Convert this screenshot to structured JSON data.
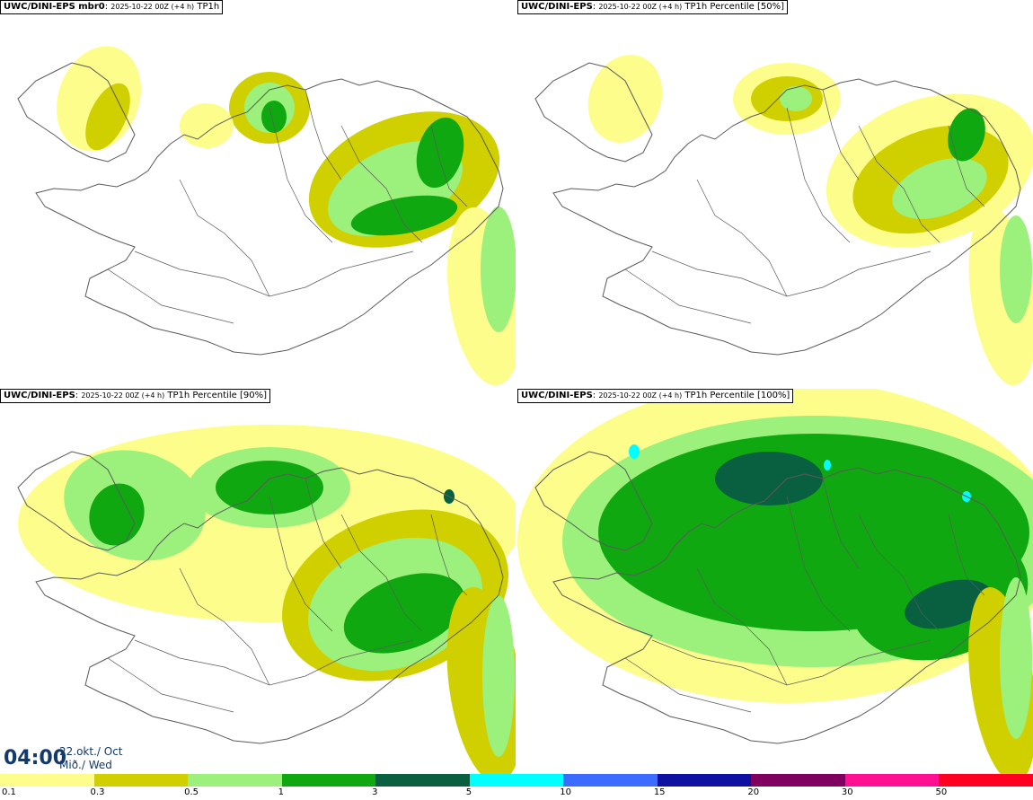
{
  "panels": [
    {
      "model": "UWC/DINI-EPS mbr0",
      "run": "2025-10-22 00Z (+4 h)",
      "field": "TP1h"
    },
    {
      "model": "UWC/DINI-EPS",
      "run": "2025-10-22 00Z (+4 h)",
      "field": "TP1h Percentile [50%]"
    },
    {
      "model": "UWC/DINI-EPS",
      "run": "2025-10-22 00Z (+4 h)",
      "field": "TP1h Percentile [90%]"
    },
    {
      "model": "UWC/DINI-EPS",
      "run": "2025-10-22 00Z (+4 h)",
      "field": "TP1h Percentile [100%]"
    }
  ],
  "valid_time": {
    "hour": "04:00",
    "date_line1": "22.okt./ Oct",
    "date_line2": "Mið./ Wed"
  },
  "colorbar": {
    "colors": [
      "#fdfd8c",
      "#d0d000",
      "#9cf07c",
      "#10a810",
      "#086040",
      "#00ffff",
      "#3c6cff",
      "#1010a0",
      "#800060",
      "#ff1090",
      "#ff0020"
    ],
    "ticks": [
      "0.1",
      "0.3",
      "0.5",
      "1",
      "3",
      "5",
      "10",
      "15",
      "20",
      "30",
      "50"
    ]
  },
  "palette": {
    "land_line": "#5a5a5a",
    "background": "#ffffff"
  }
}
